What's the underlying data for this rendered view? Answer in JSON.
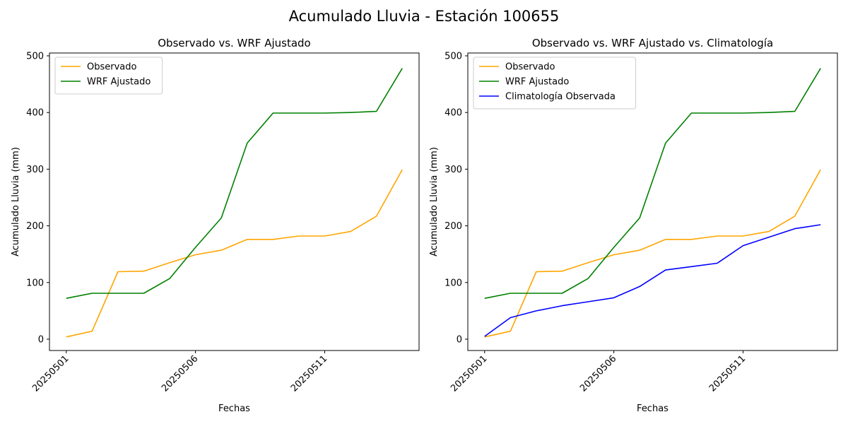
{
  "figure": {
    "title": "Acumulado Lluvia - Estación 100655"
  },
  "chart_data": [
    {
      "type": "line",
      "title": "Observado vs. WRF Ajustado",
      "xlabel": "Fechas",
      "ylabel": "Acumulado Lluvia (mm)",
      "x": [
        "20250501",
        "20250502",
        "20250503",
        "20250504",
        "20250505",
        "20250506",
        "20250507",
        "20250508",
        "20250509",
        "20250510",
        "20250511",
        "20250512",
        "20250513",
        "20250514"
      ],
      "xticks": [
        "20250501",
        "20250506",
        "20250511"
      ],
      "yticks": [
        0,
        100,
        200,
        300,
        400,
        500
      ],
      "ylim": [
        -20,
        505
      ],
      "grid": false,
      "legend": "top-left",
      "series": [
        {
          "name": "Observado",
          "color": "#ffa500",
          "values": [
            4,
            14,
            119,
            120,
            135,
            149,
            157,
            176,
            176,
            182,
            182,
            190,
            217,
            299
          ]
        },
        {
          "name": "WRF Ajustado",
          "color": "#008000",
          "values": [
            72,
            81,
            81,
            81,
            107,
            162,
            214,
            346,
            399,
            399,
            399,
            400,
            402,
            478
          ]
        }
      ]
    },
    {
      "type": "line",
      "title": "Observado vs. WRF Ajustado vs. Climatología",
      "xlabel": "Fechas",
      "ylabel": "Acumulado Lluvia (mm)",
      "x": [
        "20250501",
        "20250502",
        "20250503",
        "20250504",
        "20250505",
        "20250506",
        "20250507",
        "20250508",
        "20250509",
        "20250510",
        "20250511",
        "20250512",
        "20250513",
        "20250514"
      ],
      "xticks": [
        "20250501",
        "20250506",
        "20250511"
      ],
      "yticks": [
        0,
        100,
        200,
        300,
        400,
        500
      ],
      "ylim": [
        -20,
        505
      ],
      "grid": false,
      "legend": "top-left",
      "series": [
        {
          "name": "Observado",
          "color": "#ffa500",
          "values": [
            4,
            14,
            119,
            120,
            135,
            149,
            157,
            176,
            176,
            182,
            182,
            190,
            217,
            299
          ]
        },
        {
          "name": "WRF Ajustado",
          "color": "#008000",
          "values": [
            72,
            81,
            81,
            81,
            107,
            162,
            214,
            346,
            399,
            399,
            399,
            400,
            402,
            478
          ]
        },
        {
          "name": "Climatología Observada",
          "color": "#0000ff",
          "values": [
            5,
            38,
            50,
            59,
            66,
            73,
            93,
            122,
            128,
            134,
            165,
            180,
            195,
            202
          ]
        }
      ]
    }
  ]
}
